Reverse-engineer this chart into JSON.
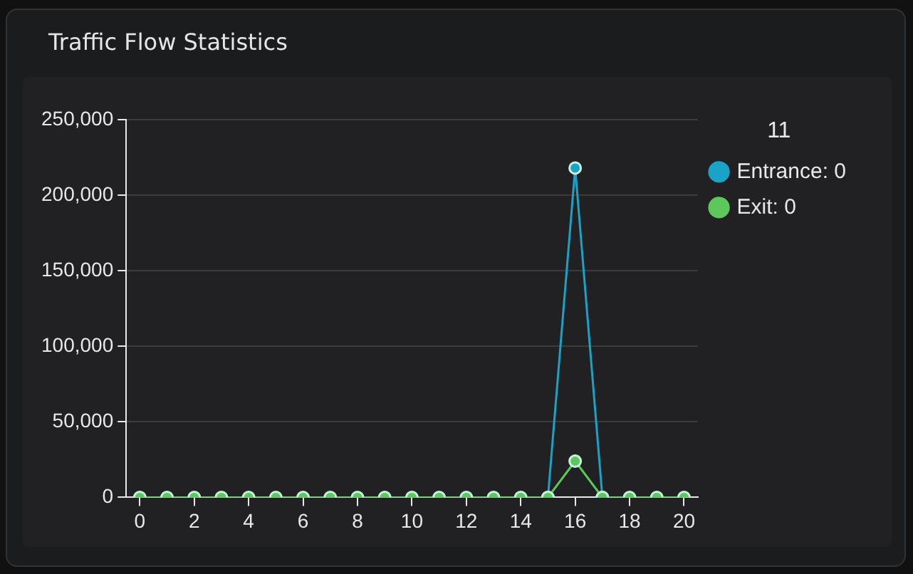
{
  "chart_data": {
    "type": "line",
    "title": "Traffic Flow Statistics",
    "legend_title": "11",
    "legend": "right",
    "x": [
      0,
      1,
      2,
      3,
      4,
      5,
      6,
      7,
      8,
      9,
      10,
      11,
      12,
      13,
      14,
      15,
      16,
      17,
      18,
      19,
      20
    ],
    "series": [
      {
        "name": "Entrance: 0",
        "color": "#1aa3c8",
        "values": [
          null,
          null,
          null,
          null,
          null,
          null,
          null,
          null,
          null,
          null,
          null,
          null,
          null,
          null,
          null,
          0,
          218000,
          0,
          null,
          null,
          null
        ]
      },
      {
        "name": "Exit: 0",
        "color": "#5cc85c",
        "values": [
          0,
          0,
          0,
          0,
          0,
          0,
          0,
          0,
          0,
          0,
          0,
          0,
          0,
          0,
          0,
          0,
          24000,
          0,
          0,
          0,
          0
        ]
      }
    ],
    "xlim": [
      -0.5,
      20.5
    ],
    "xticks": [
      0,
      2,
      4,
      6,
      8,
      10,
      12,
      14,
      16,
      18,
      20
    ],
    "ylim": [
      0,
      250000
    ],
    "yticks": [
      0,
      {
        "value": 50000,
        "label": "50,000"
      },
      {
        "value": 100000,
        "label": "100,000"
      },
      {
        "value": 150000,
        "label": "150,000"
      },
      {
        "value": 200000,
        "label": "200,000"
      },
      {
        "value": 250000,
        "label": "250,000"
      }
    ],
    "grid": "y",
    "marker": "circle"
  }
}
